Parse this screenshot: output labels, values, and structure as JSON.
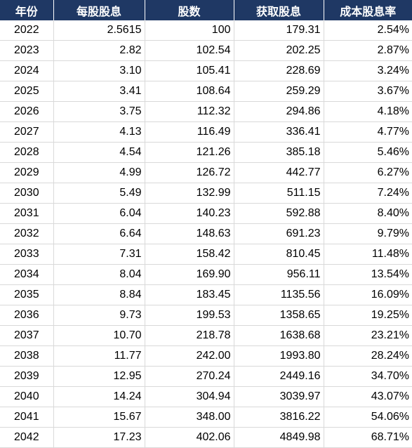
{
  "headers": [
    "年份",
    "每股股息",
    "股数",
    "获取股息",
    "成本股息率"
  ],
  "rows": [
    [
      "2022",
      "2.5615",
      "100",
      "179.31",
      "2.54%"
    ],
    [
      "2023",
      "2.82",
      "102.54",
      "202.25",
      "2.87%"
    ],
    [
      "2024",
      "3.10",
      "105.41",
      "228.69",
      "3.24%"
    ],
    [
      "2025",
      "3.41",
      "108.64",
      "259.29",
      "3.67%"
    ],
    [
      "2026",
      "3.75",
      "112.32",
      "294.86",
      "4.18%"
    ],
    [
      "2027",
      "4.13",
      "116.49",
      "336.41",
      "4.77%"
    ],
    [
      "2028",
      "4.54",
      "121.26",
      "385.18",
      "5.46%"
    ],
    [
      "2029",
      "4.99",
      "126.72",
      "442.77",
      "6.27%"
    ],
    [
      "2030",
      "5.49",
      "132.99",
      "511.15",
      "7.24%"
    ],
    [
      "2031",
      "6.04",
      "140.23",
      "592.88",
      "8.40%"
    ],
    [
      "2032",
      "6.64",
      "148.63",
      "691.23",
      "9.79%"
    ],
    [
      "2033",
      "7.31",
      "158.42",
      "810.45",
      "11.48%"
    ],
    [
      "2034",
      "8.04",
      "169.90",
      "956.11",
      "13.54%"
    ],
    [
      "2035",
      "8.84",
      "183.45",
      "1135.56",
      "16.09%"
    ],
    [
      "2036",
      "9.73",
      "199.53",
      "1358.65",
      "19.25%"
    ],
    [
      "2037",
      "10.70",
      "218.78",
      "1638.68",
      "23.21%"
    ],
    [
      "2038",
      "11.77",
      "242.00",
      "1993.80",
      "28.24%"
    ],
    [
      "2039",
      "12.95",
      "270.24",
      "2449.16",
      "34.70%"
    ],
    [
      "2040",
      "14.24",
      "304.94",
      "3039.97",
      "43.07%"
    ],
    [
      "2041",
      "15.67",
      "348.00",
      "3816.22",
      "54.06%"
    ],
    [
      "2042",
      "17.23",
      "402.06",
      "4849.98",
      "68.71%"
    ]
  ]
}
